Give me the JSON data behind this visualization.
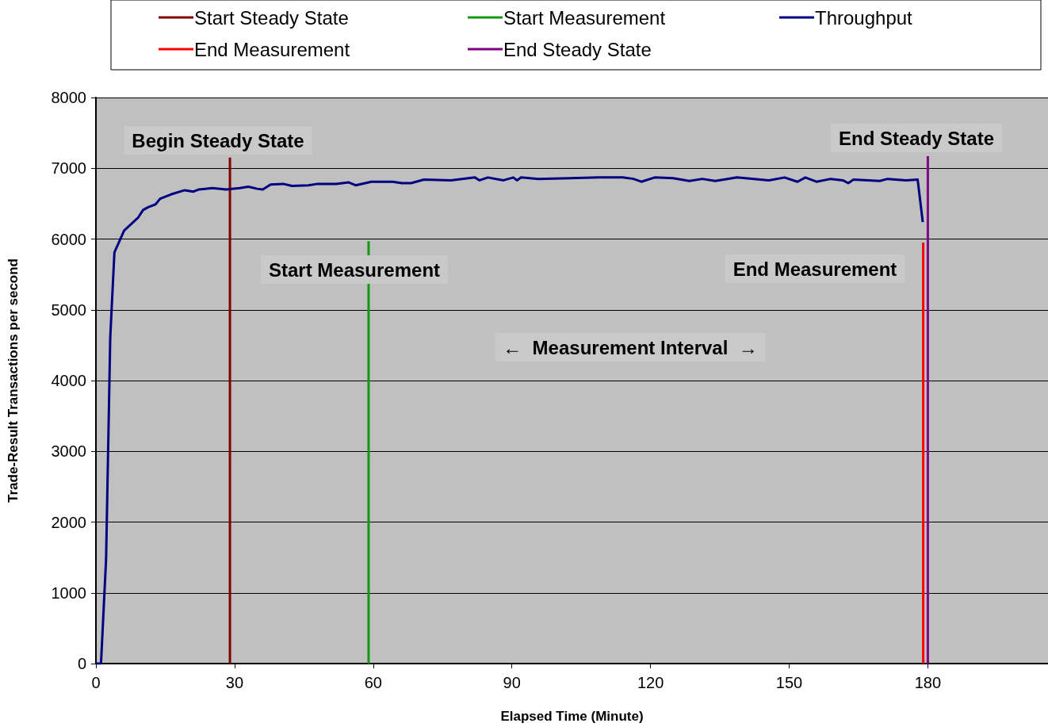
{
  "chart_data": {
    "type": "line",
    "xlabel": "Elapsed Time (Minute)",
    "ylabel": "Trade-Result Transactions per second",
    "xlim": [
      0,
      206
    ],
    "xticks": [
      0,
      30,
      60,
      90,
      120,
      150,
      180
    ],
    "ylim": [
      0,
      8000
    ],
    "yticks": [
      0,
      1000,
      2000,
      3000,
      4000,
      5000,
      6000,
      7000,
      8000
    ],
    "grid": "y",
    "legend": "top",
    "marker": "none",
    "line_style": "solid",
    "series": [
      {
        "name": "Start Steady State",
        "color": "#800000",
        "x": [
          29,
          29
        ],
        "values": [
          0,
          7150
        ]
      },
      {
        "name": "Start Measurement",
        "color": "#119911",
        "x": [
          59,
          59
        ],
        "values": [
          0,
          5970
        ]
      },
      {
        "name": "Throughput",
        "color": "#000080",
        "x": [
          0,
          1.1,
          2.2,
          3.1,
          4.0,
          6.1,
          9.1,
          10.2,
          11.3,
          12.9,
          13.9,
          16.2,
          19.2,
          21.1,
          22.2,
          25.2,
          28.2,
          31.1,
          33,
          34.9,
          36.1,
          37.8,
          40.5,
          42.4,
          46,
          48,
          52,
          54.7,
          56.2,
          59.6,
          64.2,
          66.2,
          68.2,
          71,
          76.8,
          82,
          83,
          84.8,
          88.2,
          90.3,
          91.1,
          92,
          95.7,
          102.6,
          108.8,
          114,
          116.3,
          118,
          120.9,
          124.9,
          128.4,
          131.2,
          134,
          138.7,
          145.6,
          149,
          151.8,
          153.5,
          155.9,
          159,
          161.6,
          162.8,
          163.9,
          169.6,
          171.3,
          175.3,
          177.8,
          178.9
        ],
        "values": [
          0,
          0,
          1480,
          4610,
          5810,
          6120,
          6300,
          6410,
          6450,
          6490,
          6570,
          6630,
          6690,
          6670,
          6700,
          6720,
          6700,
          6720,
          6740,
          6710,
          6700,
          6770,
          6780,
          6750,
          6760,
          6780,
          6780,
          6800,
          6760,
          6810,
          6810,
          6790,
          6790,
          6840,
          6830,
          6870,
          6830,
          6870,
          6830,
          6870,
          6830,
          6870,
          6850,
          6860,
          6870,
          6870,
          6850,
          6810,
          6870,
          6860,
          6820,
          6850,
          6820,
          6870,
          6830,
          6870,
          6810,
          6870,
          6810,
          6850,
          6830,
          6790,
          6840,
          6820,
          6850,
          6830,
          6840,
          6240
        ]
      },
      {
        "name": "End Measurement",
        "color": "#ff0000",
        "x": [
          179,
          179
        ],
        "values": [
          0,
          5950
        ]
      },
      {
        "name": "End Steady State",
        "color": "#800080",
        "x": [
          180,
          180
        ],
        "values": [
          0,
          7170
        ]
      }
    ],
    "annotations": [
      "Begin Steady State",
      "Start Measurement",
      "End Measurement",
      "End Steady State",
      "←  Measurement Interval  →"
    ]
  }
}
